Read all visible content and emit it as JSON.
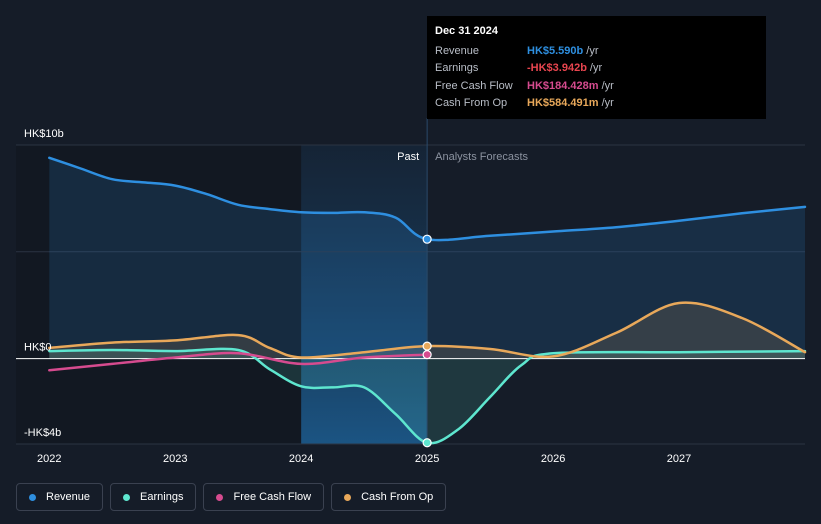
{
  "chart_data": {
    "type": "line",
    "title": "",
    "xlabel": "",
    "ylabel": "",
    "y_unit": "HK$b",
    "ylim": [
      -4,
      10
    ],
    "y_tick_labels": [
      {
        "value": 10,
        "label": "HK$10b"
      },
      {
        "value": 0,
        "label": "HK$0"
      },
      {
        "value": -4,
        "label": "-HK$4b"
      }
    ],
    "x_ticks": [
      2022,
      2023,
      2024,
      2025,
      2026,
      2027
    ],
    "xlim": [
      2021.99,
      2028.0
    ],
    "divider_x": 2025.0,
    "highlight_range": [
      2024.0,
      2025.0
    ],
    "region_labels": {
      "past": "Past",
      "forecast": "Analysts Forecasts"
    },
    "series": [
      {
        "name": "Revenue",
        "color": "#2e8fe0",
        "fill": true,
        "points": [
          [
            2022.0,
            9.4
          ],
          [
            2022.25,
            8.9
          ],
          [
            2022.5,
            8.4
          ],
          [
            2022.75,
            8.25
          ],
          [
            2023.0,
            8.1
          ],
          [
            2023.25,
            7.7
          ],
          [
            2023.5,
            7.2
          ],
          [
            2023.75,
            7.0
          ],
          [
            2024.0,
            6.85
          ],
          [
            2024.25,
            6.82
          ],
          [
            2024.5,
            6.85
          ],
          [
            2024.75,
            6.6
          ],
          [
            2025.0,
            5.59
          ],
          [
            2025.5,
            5.75
          ],
          [
            2026.0,
            5.95
          ],
          [
            2026.5,
            6.15
          ],
          [
            2027.0,
            6.45
          ],
          [
            2027.5,
            6.8
          ],
          [
            2028.0,
            7.1
          ]
        ]
      },
      {
        "name": "Earnings",
        "color": "#5ee6cf",
        "fill": true,
        "points": [
          [
            2022.0,
            0.35
          ],
          [
            2022.5,
            0.4
          ],
          [
            2023.0,
            0.35
          ],
          [
            2023.5,
            0.4
          ],
          [
            2023.75,
            -0.5
          ],
          [
            2024.0,
            -1.3
          ],
          [
            2024.25,
            -1.35
          ],
          [
            2024.5,
            -1.35
          ],
          [
            2024.75,
            -2.6
          ],
          [
            2025.0,
            -3.942
          ],
          [
            2025.25,
            -3.3
          ],
          [
            2025.5,
            -1.8
          ],
          [
            2025.75,
            -0.3
          ],
          [
            2026.0,
            0.25
          ],
          [
            2027.0,
            0.3
          ],
          [
            2028.0,
            0.35
          ]
        ]
      },
      {
        "name": "Free Cash Flow",
        "color": "#d64b8f",
        "fill": false,
        "points": [
          [
            2022.0,
            -0.55
          ],
          [
            2022.5,
            -0.25
          ],
          [
            2023.0,
            0.05
          ],
          [
            2023.5,
            0.25
          ],
          [
            2024.0,
            -0.25
          ],
          [
            2024.5,
            0.05
          ],
          [
            2025.0,
            0.184
          ]
        ]
      },
      {
        "name": "Cash From Op",
        "color": "#e8a85a",
        "fill": true,
        "points": [
          [
            2022.0,
            0.5
          ],
          [
            2022.5,
            0.75
          ],
          [
            2023.0,
            0.85
          ],
          [
            2023.5,
            1.1
          ],
          [
            2023.75,
            0.5
          ],
          [
            2024.0,
            0.05
          ],
          [
            2024.5,
            0.3
          ],
          [
            2025.0,
            0.584
          ],
          [
            2025.5,
            0.45
          ],
          [
            2026.0,
            0.1
          ],
          [
            2026.5,
            1.2
          ],
          [
            2027.0,
            2.6
          ],
          [
            2027.5,
            1.9
          ],
          [
            2028.0,
            0.3
          ]
        ]
      }
    ],
    "markers": [
      {
        "series": "Revenue",
        "x": 2025.0,
        "y": 5.59
      },
      {
        "series": "Earnings",
        "x": 2025.0,
        "y": -3.942
      },
      {
        "series": "Free Cash Flow",
        "x": 2025.0,
        "y": 0.184
      },
      {
        "series": "Cash From Op",
        "x": 2025.0,
        "y": 0.584
      }
    ]
  },
  "tooltip": {
    "date": "Dec 31 2024",
    "unit": "/yr",
    "rows": [
      {
        "name": "Revenue",
        "value": "HK$5.590b",
        "color": "#2e8fe0"
      },
      {
        "name": "Earnings",
        "value": "-HK$3.942b",
        "color": "#e8454f"
      },
      {
        "name": "Free Cash Flow",
        "value": "HK$184.428m",
        "color": "#d64b8f"
      },
      {
        "name": "Cash From Op",
        "value": "HK$584.491m",
        "color": "#e8a85a"
      }
    ]
  },
  "legend": [
    {
      "label": "Revenue",
      "color": "#2e8fe0"
    },
    {
      "label": "Earnings",
      "color": "#5ee6cf"
    },
    {
      "label": "Free Cash Flow",
      "color": "#d64b8f"
    },
    {
      "label": "Cash From Op",
      "color": "#e8a85a"
    }
  ]
}
